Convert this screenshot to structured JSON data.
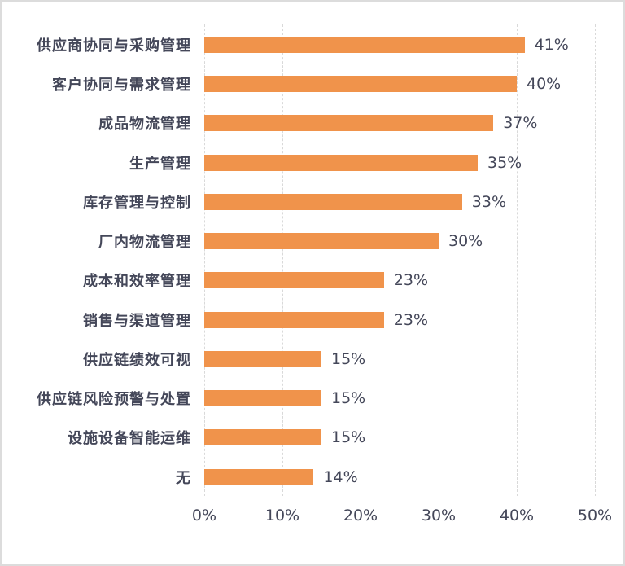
{
  "chart_data": {
    "type": "bar",
    "orientation": "horizontal",
    "title": "",
    "xlabel": "",
    "ylabel": "",
    "categories": [
      "供应商协同与采购管理",
      "客户协同与需求管理",
      "成品物流管理",
      "生产管理",
      "库存管理与控制",
      "厂内物流管理",
      "成本和效率管理",
      "销售与渠道管理",
      "供应链绩效可视",
      "供应链风险预警与处置",
      "设施设备智能运维",
      "无"
    ],
    "values": [
      41,
      40,
      37,
      35,
      33,
      30,
      23,
      23,
      15,
      15,
      15,
      14
    ],
    "value_labels": [
      "41%",
      "40%",
      "37%",
      "35%",
      "33%",
      "30%",
      "23%",
      "23%",
      "15%",
      "15%",
      "15%",
      "14%"
    ],
    "xlim": [
      0,
      50
    ],
    "xticks": [
      0,
      10,
      20,
      30,
      40,
      50
    ],
    "xtick_labels": [
      "0%",
      "10%",
      "20%",
      "30%",
      "40%",
      "50%"
    ],
    "grid": "vertical-dashed",
    "legend": "none",
    "colors": {
      "bar": "#F0934B",
      "text": "#444759",
      "gridline": "#D9D9D9",
      "frame_border": "#DCDCDC",
      "background": "#FFFFFF"
    }
  }
}
